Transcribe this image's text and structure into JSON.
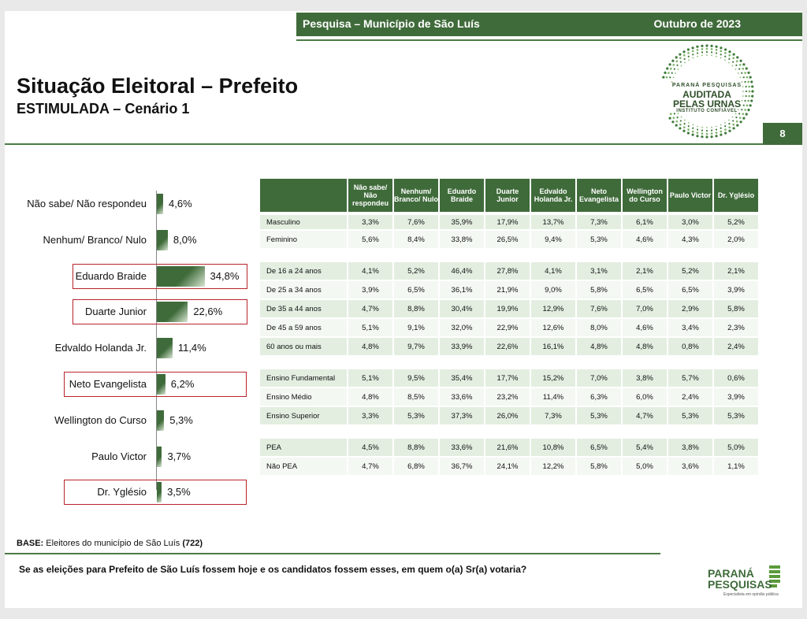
{
  "header": {
    "survey": "Pesquisa – Município de São Luís",
    "date": "Outubro de 2023",
    "page_number": "8"
  },
  "title": "Situação Eleitoral – Prefeito",
  "subtitle": "ESTIMULADA – Cenário 1",
  "seal": {
    "line1": "PARANÁ PESQUISAS",
    "line2": "AUDITADA",
    "line3": "PELAS URNAS",
    "line4": "INSTITUTO CONFIÁVEL"
  },
  "chart_data": {
    "type": "bar",
    "orientation": "horizontal",
    "categories": [
      "Não sabe/ Não respondeu",
      "Nenhum/ Branco/ Nulo",
      "Eduardo Braide",
      "Duarte Junior",
      "Edvaldo Holanda Jr.",
      "Neto Evangelista",
      "Wellington do Curso",
      "Paulo Victor",
      "Dr. Yglésio"
    ],
    "values": [
      4.6,
      8.0,
      34.8,
      22.6,
      11.4,
      6.2,
      5.3,
      3.7,
      3.5
    ],
    "value_labels": [
      "4,6%",
      "8,0%",
      "34,8%",
      "22,6%",
      "11,4%",
      "6,2%",
      "5,3%",
      "3,7%",
      "3,5%"
    ],
    "highlighted": [
      "Eduardo Braide",
      "Duarte Junior",
      "Neto Evangelista",
      "Dr. Yglésio"
    ],
    "xlim": [
      0,
      40
    ],
    "bar_color": "#3f6b3a"
  },
  "table": {
    "headers": [
      "Não sabe/ Não respondeu",
      "Nenhum/ Branco/ Nulo",
      "Eduardo Braide",
      "Duarte Junior",
      "Edvaldo Holanda Jr.",
      "Neto Evangelista",
      "Wellington do Curso",
      "Paulo Victor",
      "Dr. Yglésio"
    ],
    "groups": [
      {
        "rows": [
          {
            "label": "Masculino",
            "values": [
              "3,3%",
              "7,6%",
              "35,9%",
              "17,9%",
              "13,7%",
              "7,3%",
              "6,1%",
              "3,0%",
              "5,2%"
            ]
          },
          {
            "label": "Feminino",
            "values": [
              "5,6%",
              "8,4%",
              "33,8%",
              "26,5%",
              "9,4%",
              "5,3%",
              "4,6%",
              "4,3%",
              "2,0%"
            ]
          }
        ]
      },
      {
        "rows": [
          {
            "label": "De 16 a 24 anos",
            "values": [
              "4,1%",
              "5,2%",
              "46,4%",
              "27,8%",
              "4,1%",
              "3,1%",
              "2,1%",
              "5,2%",
              "2,1%"
            ]
          },
          {
            "label": "De 25 a 34 anos",
            "values": [
              "3,9%",
              "6,5%",
              "36,1%",
              "21,9%",
              "9,0%",
              "5,8%",
              "6,5%",
              "6,5%",
              "3,9%"
            ]
          },
          {
            "label": "De 35 a 44 anos",
            "values": [
              "4,7%",
              "8,8%",
              "30,4%",
              "19,9%",
              "12,9%",
              "7,6%",
              "7,0%",
              "2,9%",
              "5,8%"
            ]
          },
          {
            "label": "De 45 a 59 anos",
            "values": [
              "5,1%",
              "9,1%",
              "32,0%",
              "22,9%",
              "12,6%",
              "8,0%",
              "4,6%",
              "3,4%",
              "2,3%"
            ]
          },
          {
            "label": "60 anos ou mais",
            "values": [
              "4,8%",
              "9,7%",
              "33,9%",
              "22,6%",
              "16,1%",
              "4,8%",
              "4,8%",
              "0,8%",
              "2,4%"
            ]
          }
        ]
      },
      {
        "rows": [
          {
            "label": "Ensino Fundamental",
            "values": [
              "5,1%",
              "9,5%",
              "35,4%",
              "17,7%",
              "15,2%",
              "7,0%",
              "3,8%",
              "5,7%",
              "0,6%"
            ]
          },
          {
            "label": "Ensino Médio",
            "values": [
              "4,8%",
              "8,5%",
              "33,6%",
              "23,2%",
              "11,4%",
              "6,3%",
              "6,0%",
              "2,4%",
              "3,9%"
            ]
          },
          {
            "label": "Ensino Superior",
            "values": [
              "3,3%",
              "5,3%",
              "37,3%",
              "26,0%",
              "7,3%",
              "5,3%",
              "4,7%",
              "5,3%",
              "5,3%"
            ]
          }
        ]
      },
      {
        "rows": [
          {
            "label": "PEA",
            "values": [
              "4,5%",
              "8,8%",
              "33,6%",
              "21,6%",
              "10,8%",
              "6,5%",
              "5,4%",
              "3,8%",
              "5,0%"
            ]
          },
          {
            "label": "Não PEA",
            "values": [
              "4,7%",
              "6,8%",
              "36,7%",
              "24,1%",
              "12,2%",
              "5,8%",
              "5,0%",
              "3,6%",
              "1,1%"
            ]
          }
        ]
      }
    ]
  },
  "base": {
    "label": "BASE:",
    "text": "Eleitores do município de São Luís",
    "count": "(722)"
  },
  "question": "Se as eleições para Prefeito de São Luís fossem hoje e os candidatos fossem esses, em quem o(a) Sr(a) votaria?",
  "logo": {
    "line1": "PARANÁ",
    "line2": "PESQUISAS",
    "tagline": "Especialista em opinião pública"
  },
  "colors": {
    "primary_green": "#3f6b3a",
    "highlight_red": "#b8242a"
  }
}
